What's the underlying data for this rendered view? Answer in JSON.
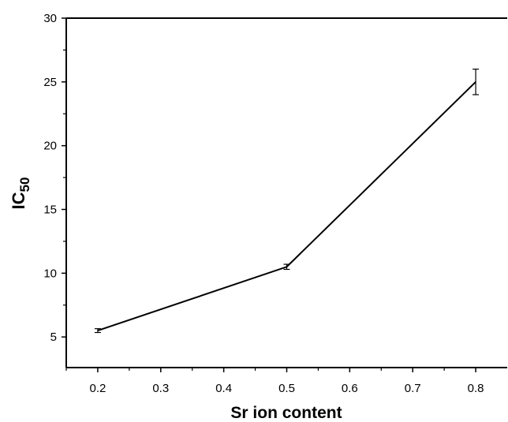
{
  "chart_data": {
    "type": "line",
    "title": "",
    "xlabel": "Sr ion content",
    "ylabel_main": "IC",
    "ylabel_sub": "50",
    "x": [
      0.2,
      0.5,
      0.8
    ],
    "series": [
      {
        "values": [
          5.5,
          10.5,
          25.0
        ],
        "error": [
          0.15,
          0.2,
          1.0
        ]
      }
    ],
    "xlim": [
      0.15,
      0.85
    ],
    "ylim": [
      2.6,
      30
    ],
    "xticks": [
      0.2,
      0.3,
      0.4,
      0.5,
      0.6,
      0.7,
      0.8
    ],
    "xtick_labels": [
      "0.2",
      "0.3",
      "0.4",
      "0.5",
      "0.6",
      "0.7",
      "0.8"
    ],
    "yticks": [
      5,
      10,
      15,
      20,
      25,
      30
    ],
    "ytick_labels": [
      "5",
      "10",
      "15",
      "20",
      "25",
      "30"
    ],
    "grid": false,
    "line_color": "#000000"
  }
}
